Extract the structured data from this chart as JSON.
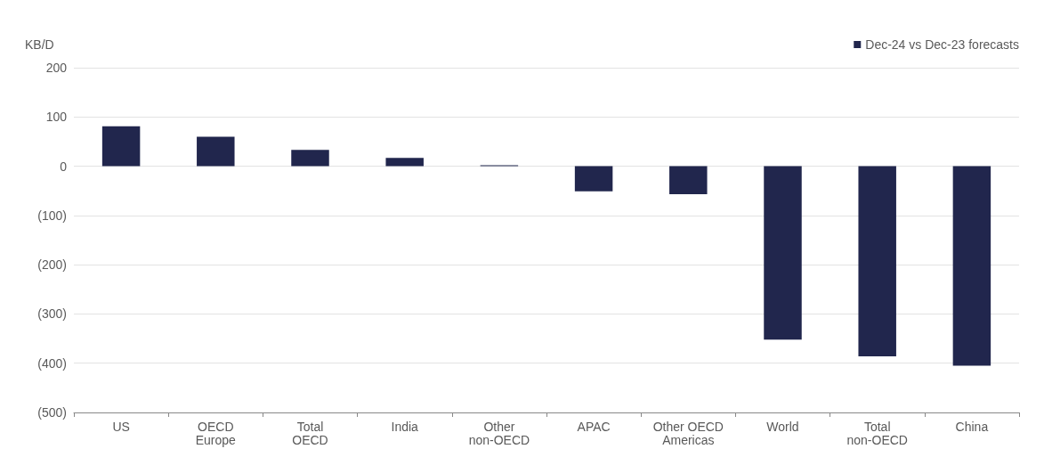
{
  "chart_data": {
    "type": "bar",
    "ylabel": "KB/D",
    "categories": [
      "US",
      "OECD\nEurope",
      "Total\nOECD",
      "India",
      "Other\nnon-OECD",
      "APAC",
      "Other OECD\nAmericas",
      "World",
      "Total\nnon-OECD",
      "China"
    ],
    "series": [
      {
        "name": "Dec-24 vs Dec-23 forecasts",
        "color": "#21264d",
        "values": [
          81,
          60,
          33,
          17,
          2,
          -51,
          -57,
          -352,
          -386,
          -405
        ]
      }
    ],
    "ylim": [
      -500,
      200
    ],
    "yticks": [
      {
        "value": -500,
        "label": "(500)"
      },
      {
        "value": -400,
        "label": "(400)"
      },
      {
        "value": -300,
        "label": "(300)"
      },
      {
        "value": -200,
        "label": "(200)"
      },
      {
        "value": -100,
        "label": "(100)"
      },
      0,
      100,
      200
    ],
    "grid": "y",
    "legend": "top right"
  }
}
